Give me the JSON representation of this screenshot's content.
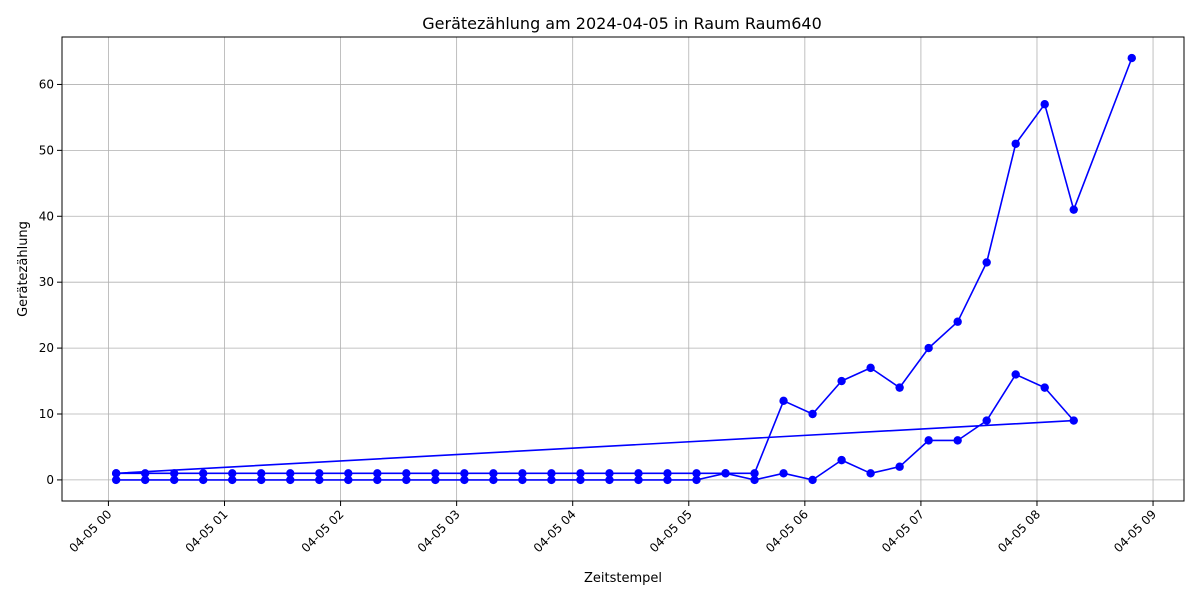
{
  "chart_data": {
    "type": "line",
    "title": "Gerätezählung am 2024-04-05 in Raum Raum640",
    "xlabel": "Zeitstempel",
    "ylabel": "Gerätezählung",
    "x_axis_kind": "time",
    "xlim": [
      "2024-04-04 23:36",
      "2024-04-05 09:16"
    ],
    "ylim": [
      -3.2,
      67.2
    ],
    "grid": true,
    "xticks": [
      {
        "t": "2024-04-05 00:00",
        "label": "04-05 00"
      },
      {
        "t": "2024-04-05 01:00",
        "label": "04-05 01"
      },
      {
        "t": "2024-04-05 02:00",
        "label": "04-05 02"
      },
      {
        "t": "2024-04-05 03:00",
        "label": "04-05 03"
      },
      {
        "t": "2024-04-05 04:00",
        "label": "04-05 04"
      },
      {
        "t": "2024-04-05 05:00",
        "label": "04-05 05"
      },
      {
        "t": "2024-04-05 06:00",
        "label": "04-05 06"
      },
      {
        "t": "2024-04-05 07:00",
        "label": "04-05 07"
      },
      {
        "t": "2024-04-05 08:00",
        "label": "04-05 08"
      },
      {
        "t": "2024-04-05 09:00",
        "label": "04-05 09"
      }
    ],
    "yticks": [
      0,
      10,
      20,
      30,
      40,
      50,
      60
    ],
    "series": [
      {
        "color": "#0000ff",
        "marker": "circle",
        "x": [
          "2024-04-05 00:04",
          "2024-04-05 00:19",
          "2024-04-05 00:34",
          "2024-04-05 00:49",
          "2024-04-05 01:04",
          "2024-04-05 01:19",
          "2024-04-05 01:34",
          "2024-04-05 01:49",
          "2024-04-05 02:04",
          "2024-04-05 02:19",
          "2024-04-05 02:34",
          "2024-04-05 02:49",
          "2024-04-05 03:04",
          "2024-04-05 03:19",
          "2024-04-05 03:34",
          "2024-04-05 03:49",
          "2024-04-05 04:04",
          "2024-04-05 04:19",
          "2024-04-05 04:34",
          "2024-04-05 04:49",
          "2024-04-05 05:04",
          "2024-04-05 05:19",
          "2024-04-05 05:34",
          "2024-04-05 05:49",
          "2024-04-05 06:04",
          "2024-04-05 06:19",
          "2024-04-05 06:34",
          "2024-04-05 06:49",
          "2024-04-05 07:04",
          "2024-04-05 07:19",
          "2024-04-05 07:34",
          "2024-04-05 07:49",
          "2024-04-05 08:04",
          "2024-04-05 08:19",
          "2024-04-05 08:49"
        ],
        "y": [
          1,
          1,
          1,
          1,
          1,
          1,
          1,
          1,
          1,
          1,
          1,
          1,
          1,
          1,
          1,
          1,
          1,
          1,
          1,
          1,
          1,
          1,
          1,
          12,
          10,
          15,
          17,
          14,
          20,
          24,
          33,
          51,
          57,
          41,
          64
        ]
      },
      {
        "color": "#0000ff",
        "marker": "circle",
        "x": [
          "2024-04-05 00:04",
          "2024-04-05 00:19",
          "2024-04-05 00:34",
          "2024-04-05 00:49",
          "2024-04-05 01:04",
          "2024-04-05 01:19",
          "2024-04-05 01:34",
          "2024-04-05 01:49",
          "2024-04-05 02:04",
          "2024-04-05 02:19",
          "2024-04-05 02:34",
          "2024-04-05 02:49",
          "2024-04-05 03:04",
          "2024-04-05 03:19",
          "2024-04-05 03:34",
          "2024-04-05 03:49",
          "2024-04-05 04:04",
          "2024-04-05 04:19",
          "2024-04-05 04:34",
          "2024-04-05 04:49",
          "2024-04-05 05:04",
          "2024-04-05 05:19",
          "2024-04-05 05:34",
          "2024-04-05 05:49",
          "2024-04-05 06:04",
          "2024-04-05 06:19",
          "2024-04-05 06:34",
          "2024-04-05 06:49",
          "2024-04-05 07:04",
          "2024-04-05 07:19",
          "2024-04-05 07:34",
          "2024-04-05 07:49",
          "2024-04-05 08:04",
          "2024-04-05 08:19",
          "2024-04-05 00:04"
        ],
        "y": [
          0,
          0,
          0,
          0,
          0,
          0,
          0,
          0,
          0,
          0,
          0,
          0,
          0,
          0,
          0,
          0,
          0,
          0,
          0,
          0,
          0,
          1,
          0,
          1,
          0,
          3,
          1,
          2,
          6,
          6,
          9,
          16,
          14,
          9,
          1
        ]
      }
    ]
  }
}
